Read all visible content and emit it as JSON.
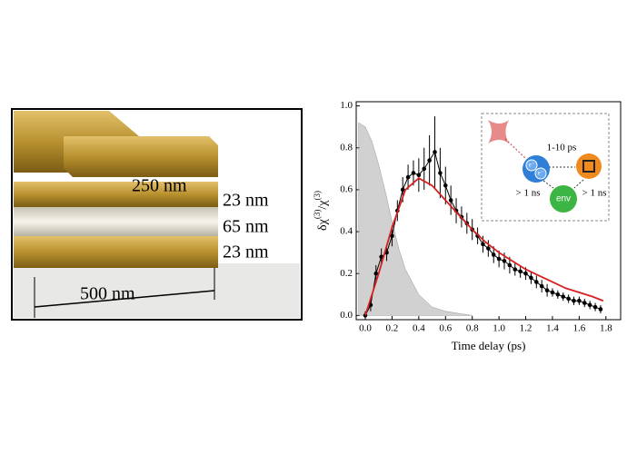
{
  "illustration": {
    "labels": [
      "250 nm",
      "23 nm",
      "65 nm",
      "23 nm",
      "500 nm"
    ]
  },
  "chart_data": {
    "type": "line",
    "xlabel": "Time delay (ps)",
    "ylabel": [
      "δχ",
      "(3)",
      "/χ",
      "(3)"
    ],
    "xlim": [
      -0.068,
      1.91
    ],
    "ylim": [
      -0.02,
      1.02
    ],
    "xticks": [
      {
        "value": 0,
        "label": "0.0"
      },
      0.2,
      0.4,
      0.6,
      0.8,
      {
        "value": 1,
        "label": "1.0"
      },
      1.2,
      1.4,
      1.6,
      1.8
    ],
    "yticks": [
      {
        "value": 0,
        "label": "0.0"
      },
      0.2,
      0.4,
      0.6,
      0.8,
      {
        "value": 1,
        "label": "1.0"
      }
    ],
    "pump": {
      "color": "#bdbdbd",
      "x": [
        -0.05,
        0,
        0.05,
        0.1,
        0.15,
        0.2,
        0.25,
        0.3,
        0.4,
        0.5,
        0.6,
        0.7,
        0.8
      ],
      "values": [
        0.92,
        0.9,
        0.83,
        0.72,
        0.59,
        0.45,
        0.32,
        0.22,
        0.1,
        0.04,
        0.02,
        0.01,
        0
      ]
    },
    "fit": {
      "color": "#d62020",
      "x": [
        0,
        0.1,
        0.2,
        0.3,
        0.4,
        0.5,
        0.6,
        0.7,
        0.8,
        0.9,
        1.0,
        1.1,
        1.2,
        1.3,
        1.4,
        1.5,
        1.6,
        1.7,
        1.78
      ],
      "values": [
        0,
        0.2,
        0.42,
        0.6,
        0.655,
        0.62,
        0.55,
        0.48,
        0.41,
        0.35,
        0.3,
        0.26,
        0.22,
        0.19,
        0.16,
        0.13,
        0.11,
        0.09,
        0.07
      ]
    },
    "data": {
      "color": "#000000",
      "x": [
        0,
        0.04,
        0.08,
        0.12,
        0.16,
        0.2,
        0.24,
        0.28,
        0.32,
        0.36,
        0.4,
        0.44,
        0.48,
        0.52,
        0.56,
        0.6,
        0.64,
        0.68,
        0.72,
        0.76,
        0.8,
        0.84,
        0.88,
        0.92,
        0.96,
        1.0,
        1.04,
        1.08,
        1.12,
        1.16,
        1.2,
        1.24,
        1.28,
        1.32,
        1.36,
        1.4,
        1.44,
        1.48,
        1.52,
        1.56,
        1.6,
        1.64,
        1.68,
        1.72,
        1.76
      ],
      "values": [
        0,
        0.05,
        0.2,
        0.28,
        0.3,
        0.38,
        0.5,
        0.6,
        0.66,
        0.68,
        0.67,
        0.7,
        0.74,
        0.78,
        0.68,
        0.62,
        0.55,
        0.5,
        0.47,
        0.44,
        0.41,
        0.38,
        0.34,
        0.32,
        0.29,
        0.27,
        0.26,
        0.24,
        0.22,
        0.21,
        0.2,
        0.18,
        0.16,
        0.14,
        0.12,
        0.11,
        0.1,
        0.09,
        0.08,
        0.07,
        0.07,
        0.06,
        0.05,
        0.04,
        0.03
      ],
      "errors": [
        0.02,
        0.03,
        0.04,
        0.04,
        0.04,
        0.05,
        0.05,
        0.06,
        0.06,
        0.06,
        0.08,
        0.1,
        0.12,
        0.17,
        0.12,
        0.09,
        0.07,
        0.06,
        0.05,
        0.05,
        0.05,
        0.04,
        0.04,
        0.04,
        0.04,
        0.04,
        0.04,
        0.04,
        0.03,
        0.03,
        0.03,
        0.03,
        0.03,
        0.03,
        0.03,
        0.02,
        0.02,
        0.02,
        0.02,
        0.02,
        0.02,
        0.02,
        0.02,
        0.02,
        0.02
      ]
    },
    "inset": {
      "timescale": "1-10 ps",
      "electron": "e⁻",
      "env": "env",
      "left_time": "> 1 ns",
      "right_time": "> 1 ns"
    }
  }
}
